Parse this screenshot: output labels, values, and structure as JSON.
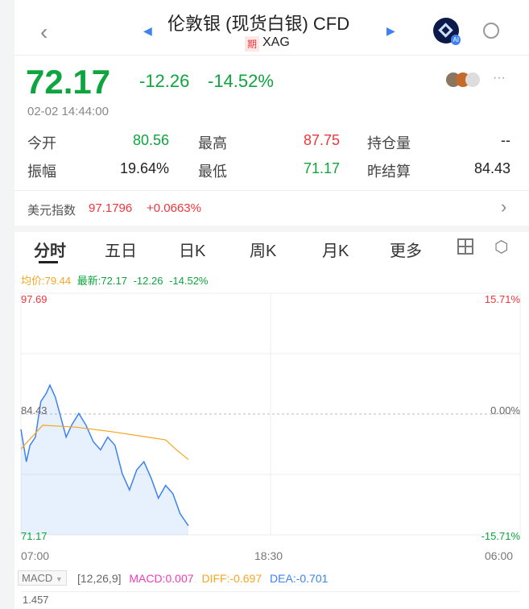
{
  "header": {
    "title": "伦敦银 (现货白银) CFD",
    "badge": "期",
    "symbol": "XAG",
    "ai_label": "AI"
  },
  "quote": {
    "price": "72.17",
    "change": "-12.26",
    "change_pct": "-14.52%",
    "time": "02-02 14:44:00"
  },
  "stats": [
    {
      "label": "今开",
      "value": "80.56",
      "color": "green"
    },
    {
      "label": "最高",
      "value": "87.75",
      "color": "red"
    },
    {
      "label": "持仓量",
      "value": "--",
      "color": "black"
    },
    {
      "label": "振幅",
      "value": "19.64%",
      "color": "black"
    },
    {
      "label": "最低",
      "value": "71.17",
      "color": "green"
    },
    {
      "label": "昨结算",
      "value": "84.43",
      "color": "black"
    }
  ],
  "index": {
    "label": "美元指数",
    "value": "97.1796",
    "change": "+0.0663%"
  },
  "tabs": [
    "分时",
    "五日",
    "日K",
    "周K",
    "月K",
    "更多"
  ],
  "legend": {
    "avg": "均价:79.44",
    "latest": "最新:72.17",
    "change": "-12.26",
    "pct": "-14.52%"
  },
  "chart_data": {
    "type": "line",
    "ylim": [
      71.17,
      97.69
    ],
    "y_ticks_left": [
      "97.69",
      "84.43",
      "71.17"
    ],
    "y_ticks_right": [
      "15.71%",
      "0.00%",
      "-15.71%"
    ],
    "x_ticks": [
      "07:00",
      "18:30",
      "06:00"
    ],
    "reference": 84.43,
    "series": [
      {
        "color": "#3d82f0",
        "x": [
          0,
          15,
          25,
          40,
          55,
          70,
          80,
          95,
          110,
          125,
          140,
          160,
          180,
          200,
          220,
          240,
          260,
          280,
          300,
          320,
          340,
          360,
          380,
          400,
          420,
          440,
          463
        ],
        "y": [
          82.75,
          79.2,
          81.0,
          81.9,
          85.8,
          86.7,
          87.6,
          86.3,
          84.1,
          81.9,
          83.2,
          84.5,
          83.2,
          81.4,
          80.5,
          81.9,
          81.0,
          77.9,
          76.1,
          78.3,
          79.2,
          77.4,
          75.2,
          76.6,
          75.7,
          73.5,
          72.17
        ]
      },
      {
        "color": "#f5a623",
        "x": [
          0,
          60,
          150,
          250,
          350,
          400,
          430,
          463
        ],
        "y": [
          80.6,
          83.2,
          83.0,
          82.5,
          81.9,
          81.6,
          80.5,
          79.44
        ]
      }
    ]
  },
  "macd": {
    "select": "MACD",
    "params": "[12,26,9]",
    "macd": "MACD:0.007",
    "diff": "DIFF:-0.697",
    "dea": "DEA:-0.701",
    "top": "1.457"
  },
  "colors": {
    "up": "#f0353c",
    "down": "#0ea43f",
    "accent": "#3d82f0"
  }
}
